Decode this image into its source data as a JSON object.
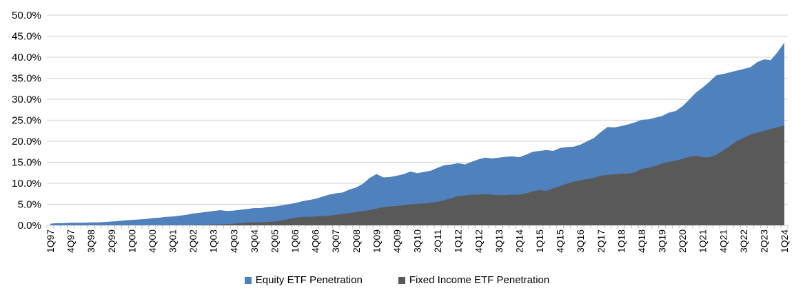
{
  "chart_data": {
    "type": "area",
    "mode": "overlapping",
    "title": "",
    "xlabel": "",
    "ylabel": "",
    "categories": [
      "1Q97",
      "2Q97",
      "3Q97",
      "4Q97",
      "1Q98",
      "2Q98",
      "3Q98",
      "4Q98",
      "1Q99",
      "2Q99",
      "3Q99",
      "4Q99",
      "1Q00",
      "2Q00",
      "3Q00",
      "4Q00",
      "1Q01",
      "2Q01",
      "3Q01",
      "4Q01",
      "1Q02",
      "2Q02",
      "3Q02",
      "4Q02",
      "1Q03",
      "2Q03",
      "3Q03",
      "4Q03",
      "1Q04",
      "2Q04",
      "3Q04",
      "4Q04",
      "1Q05",
      "2Q05",
      "3Q05",
      "4Q05",
      "1Q06",
      "2Q06",
      "3Q06",
      "4Q06",
      "1Q07",
      "2Q07",
      "3Q07",
      "4Q07",
      "1Q08",
      "2Q08",
      "3Q08",
      "4Q08",
      "1Q09",
      "2Q09",
      "3Q09",
      "4Q09",
      "1Q10",
      "2Q10",
      "3Q10",
      "4Q10",
      "1Q11",
      "2Q11",
      "3Q11",
      "4Q11",
      "1Q12",
      "2Q12",
      "3Q12",
      "4Q12",
      "1Q13",
      "2Q13",
      "3Q13",
      "4Q13",
      "1Q14",
      "2Q14",
      "3Q14",
      "4Q14",
      "1Q15",
      "2Q15",
      "3Q15",
      "4Q15",
      "1Q16",
      "2Q16",
      "3Q16",
      "4Q16",
      "1Q17",
      "2Q17",
      "3Q17",
      "4Q17",
      "1Q18",
      "2Q18",
      "3Q18",
      "4Q18",
      "1Q19",
      "2Q19",
      "3Q19",
      "4Q19",
      "1Q20",
      "2Q20",
      "3Q20",
      "4Q20",
      "1Q21",
      "2Q21",
      "3Q21",
      "4Q21",
      "1Q22",
      "2Q22",
      "3Q22",
      "4Q22",
      "1Q23",
      "2Q23",
      "3Q23",
      "4Q23",
      "1Q24"
    ],
    "x_tick_label_step": 3,
    "series": [
      {
        "name": "Equity ETF Penetration",
        "color": "#4F81BD",
        "values": [
          0.4,
          0.5,
          0.5,
          0.6,
          0.6,
          0.6,
          0.7,
          0.7,
          0.8,
          0.9,
          1.0,
          1.2,
          1.3,
          1.4,
          1.5,
          1.7,
          1.8,
          2.0,
          2.1,
          2.3,
          2.5,
          2.8,
          3.0,
          3.2,
          3.4,
          3.6,
          3.4,
          3.5,
          3.7,
          3.9,
          4.1,
          4.1,
          4.4,
          4.5,
          4.7,
          5.0,
          5.3,
          5.7,
          6.0,
          6.3,
          6.8,
          7.3,
          7.6,
          7.8,
          8.5,
          9.0,
          9.9,
          11.3,
          12.2,
          11.4,
          11.5,
          11.8,
          12.2,
          12.8,
          12.4,
          12.7,
          13.0,
          13.7,
          14.3,
          14.5,
          14.8,
          14.5,
          15.1,
          15.7,
          16.1,
          15.9,
          16.1,
          16.3,
          16.4,
          16.2,
          16.8,
          17.5,
          17.7,
          17.9,
          17.7,
          18.4,
          18.6,
          18.7,
          19.2,
          20.0,
          20.8,
          22.2,
          23.4,
          23.3,
          23.6,
          24.0,
          24.5,
          25.1,
          25.2,
          25.6,
          26.0,
          26.8,
          27.2,
          28.3,
          29.9,
          31.6,
          32.8,
          34.2,
          35.7,
          36.0,
          36.4,
          36.8,
          37.2,
          37.6,
          38.8,
          39.5,
          39.3,
          41.2,
          43.5
        ]
      },
      {
        "name": "Fixed Income ETF Penetration",
        "color": "#595959",
        "values": [
          0,
          0,
          0,
          0,
          0,
          0,
          0,
          0,
          0,
          0,
          0,
          0,
          0,
          0,
          0,
          0,
          0,
          0,
          0,
          0,
          0,
          0,
          0.1,
          0.1,
          0.2,
          0.2,
          0.3,
          0.4,
          0.5,
          0.6,
          0.7,
          0.7,
          0.8,
          0.9,
          1.1,
          1.5,
          1.8,
          2.0,
          2.0,
          2.1,
          2.2,
          2.3,
          2.5,
          2.7,
          2.9,
          3.2,
          3.4,
          3.6,
          4.0,
          4.3,
          4.5,
          4.6,
          4.8,
          5.0,
          5.1,
          5.2,
          5.4,
          5.6,
          6.0,
          6.4,
          7.0,
          7.1,
          7.3,
          7.3,
          7.4,
          7.3,
          7.2,
          7.2,
          7.3,
          7.3,
          7.6,
          8.1,
          8.4,
          8.2,
          8.8,
          9.3,
          9.9,
          10.4,
          10.7,
          11.0,
          11.3,
          11.8,
          12.0,
          12.1,
          12.3,
          12.3,
          12.6,
          13.4,
          13.7,
          14.1,
          14.7,
          15.1,
          15.4,
          15.8,
          16.3,
          16.5,
          16.2,
          16.2,
          16.8,
          17.8,
          18.9,
          20.0,
          20.8,
          21.6,
          22.0,
          22.5,
          22.9,
          23.3,
          23.8
        ]
      }
    ],
    "y_axis": {
      "min": 0,
      "max": 50,
      "step": 5,
      "tick_labels": [
        "0.0%",
        "5.0%",
        "10.0%",
        "15.0%",
        "20.0%",
        "25.0%",
        "30.0%",
        "35.0%",
        "40.0%",
        "45.0%",
        "50.0%"
      ]
    },
    "grid": true,
    "legend_position": "bottom"
  },
  "colors": {
    "gridline": "#D9D9D9",
    "axis_tick": "#BFBFBF",
    "text": "#000000",
    "background": "#FFFFFF"
  }
}
